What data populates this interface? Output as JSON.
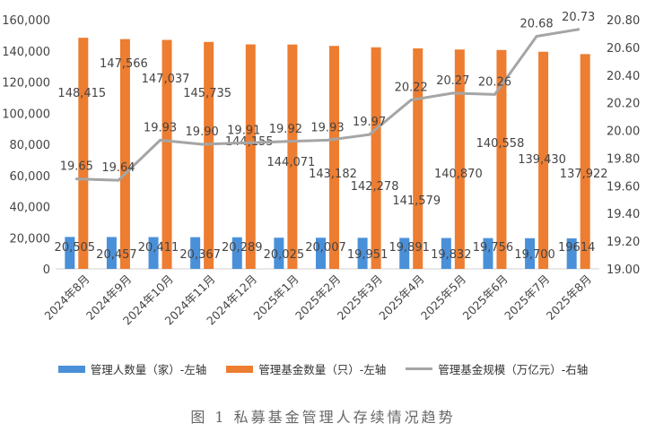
{
  "chart_data": {
    "type": "bar+line",
    "categories": [
      "2024年8月",
      "2024年9月",
      "2024年10月",
      "2024年11月",
      "2024年12月",
      "2025年1月",
      "2025年2月",
      "2025年3月",
      "2025年4月",
      "2025年5月",
      "2025年6月",
      "2025年7月",
      "2025年8月"
    ],
    "series": [
      {
        "name": "管理人数量（家）-左轴",
        "type": "bar",
        "axis": "left",
        "color": "#4A90D9",
        "values": [
          20505,
          20457,
          20411,
          20367,
          20289,
          20025,
          20007,
          19951,
          19891,
          19832,
          19756,
          19700,
          19614
        ],
        "labels": [
          "20,505",
          "20,457",
          "20,411",
          "20,367",
          "20,289",
          "20,025",
          "20,007",
          "19,951",
          "19,891",
          "19,832",
          "19,756",
          "19,700",
          "19614"
        ]
      },
      {
        "name": "管理基金数量（只）-左轴",
        "type": "bar",
        "axis": "left",
        "color": "#ED7D31",
        "values": [
          148415,
          147566,
          147037,
          145735,
          144155,
          144071,
          143182,
          142278,
          141579,
          140870,
          140558,
          139430,
          137922
        ],
        "labels": [
          "148,415",
          "147,566",
          "147,037",
          "145,735",
          "144,155",
          "144,071",
          "143,182",
          "142,278",
          "141,579",
          "140,870",
          "140,558",
          "139,430",
          "137,922"
        ]
      },
      {
        "name": "管理基金规模（万亿元）-右轴",
        "type": "line",
        "axis": "right",
        "color": "#A5A5A5",
        "values": [
          19.65,
          19.64,
          19.93,
          19.9,
          19.91,
          19.92,
          19.93,
          19.97,
          20.22,
          20.27,
          20.26,
          20.68,
          20.73
        ],
        "labels": [
          "19.65",
          "19.64",
          "19.93",
          "19.90",
          "19.91",
          "19.92",
          "19.93",
          "19.97",
          "20.22",
          "20.27",
          "20.26",
          "20.68",
          "20.73"
        ]
      }
    ],
    "left_axis": {
      "min": 0,
      "max": 160000,
      "step": 20000,
      "ticks": [
        "0",
        "20,000",
        "40,000",
        "60,000",
        "80,000",
        "100,000",
        "120,000",
        "140,000",
        "160,000"
      ]
    },
    "right_axis": {
      "min": 19.0,
      "max": 20.8,
      "step": 0.2,
      "ticks": [
        "19.00",
        "19.20",
        "19.40",
        "19.60",
        "19.80",
        "20.00",
        "20.20",
        "20.40",
        "20.60",
        "20.80"
      ]
    },
    "grid": false,
    "legend_position": "bottom",
    "caption": "图 1  私募基金管理人存续情况趋势"
  }
}
